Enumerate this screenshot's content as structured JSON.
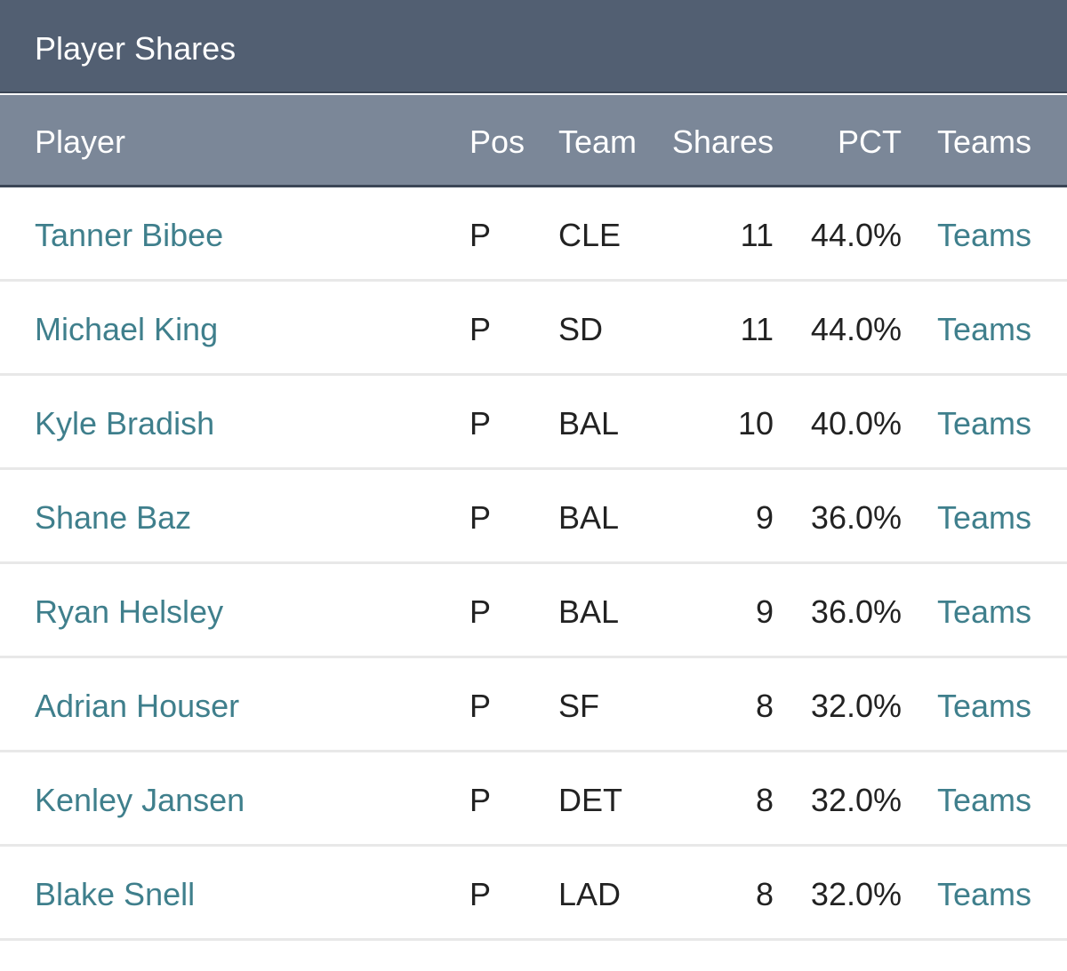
{
  "title": "Player Shares",
  "columns": {
    "player": "Player",
    "pos": "Pos",
    "team": "Team",
    "shares": "Shares",
    "pct": "PCT",
    "teams": "Teams"
  },
  "rows": [
    {
      "player": "Tanner Bibee",
      "pos": "P",
      "team": "CLE",
      "shares": "11",
      "pct": "44.0%",
      "teams": "Teams"
    },
    {
      "player": "Michael King",
      "pos": "P",
      "team": "SD",
      "shares": "11",
      "pct": "44.0%",
      "teams": "Teams"
    },
    {
      "player": "Kyle Bradish",
      "pos": "P",
      "team": "BAL",
      "shares": "10",
      "pct": "40.0%",
      "teams": "Teams"
    },
    {
      "player": "Shane Baz",
      "pos": "P",
      "team": "BAL",
      "shares": "9",
      "pct": "36.0%",
      "teams": "Teams"
    },
    {
      "player": "Ryan Helsley",
      "pos": "P",
      "team": "BAL",
      "shares": "9",
      "pct": "36.0%",
      "teams": "Teams"
    },
    {
      "player": "Adrian Houser",
      "pos": "P",
      "team": "SF",
      "shares": "8",
      "pct": "32.0%",
      "teams": "Teams"
    },
    {
      "player": "Kenley Jansen",
      "pos": "P",
      "team": "DET",
      "shares": "8",
      "pct": "32.0%",
      "teams": "Teams"
    },
    {
      "player": "Blake Snell",
      "pos": "P",
      "team": "LAD",
      "shares": "8",
      "pct": "32.0%",
      "teams": "Teams"
    }
  ]
}
